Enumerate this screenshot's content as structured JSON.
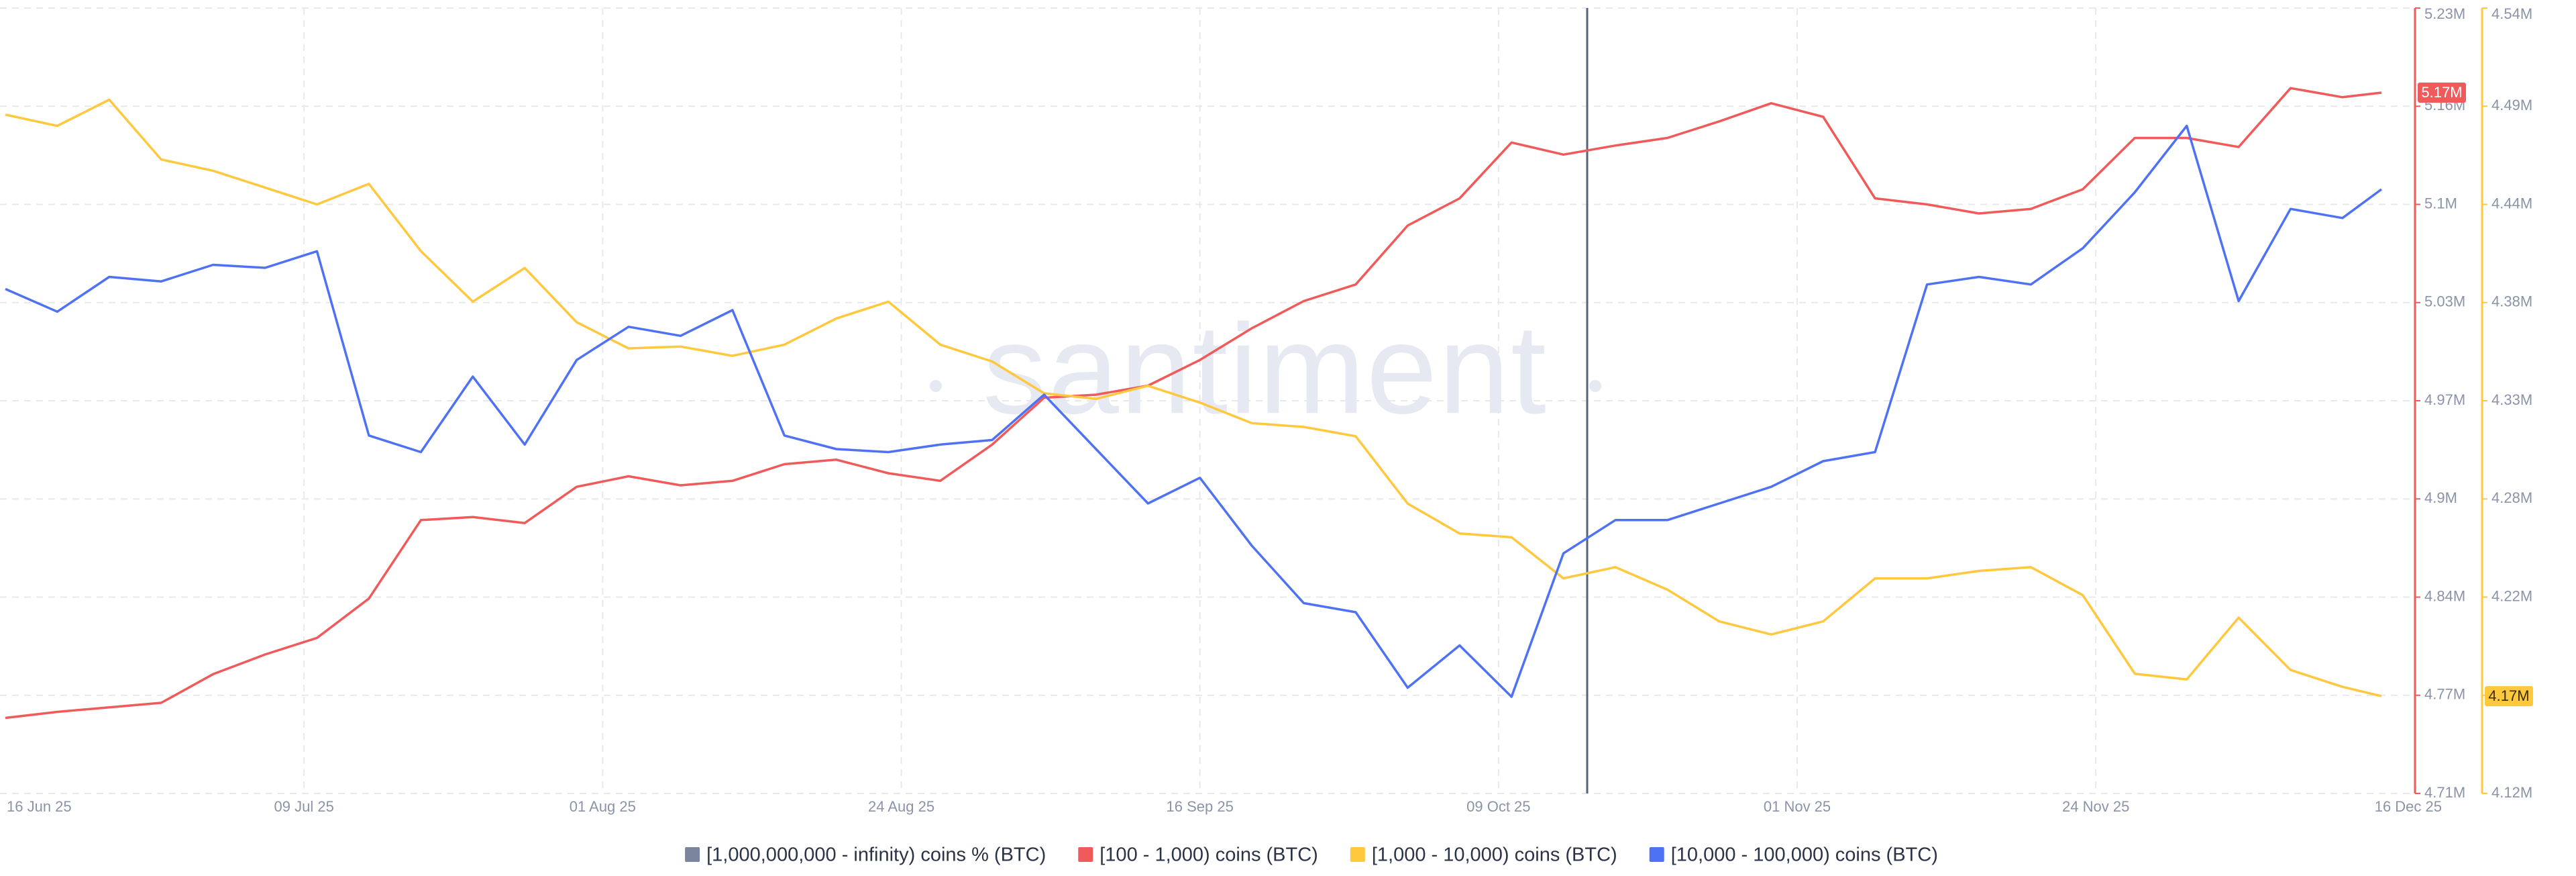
{
  "chart_data": {
    "type": "line",
    "watermark": "santiment",
    "x": [
      "2025-06-16",
      "2025-06-20",
      "2025-06-24",
      "2025-06-28",
      "2025-07-02",
      "2025-07-06",
      "2025-07-10",
      "2025-07-14",
      "2025-07-18",
      "2025-07-22",
      "2025-07-26",
      "2025-07-30",
      "2025-08-03",
      "2025-08-07",
      "2025-08-11",
      "2025-08-15",
      "2025-08-19",
      "2025-08-23",
      "2025-08-27",
      "2025-08-31",
      "2025-09-04",
      "2025-09-08",
      "2025-09-12",
      "2025-09-16",
      "2025-09-20",
      "2025-09-24",
      "2025-09-28",
      "2025-10-02",
      "2025-10-06",
      "2025-10-10",
      "2025-10-14",
      "2025-10-18",
      "2025-10-22",
      "2025-10-26",
      "2025-10-30",
      "2025-11-03",
      "2025-11-07",
      "2025-11-11",
      "2025-11-15",
      "2025-11-19",
      "2025-11-23",
      "2025-11-27",
      "2025-12-01",
      "2025-12-05",
      "2025-12-09",
      "2025-12-13",
      "2025-12-16"
    ],
    "xlim": [
      "2025-06-16",
      "2025-12-16"
    ],
    "xticks": [
      {
        "value": "2025-06-16",
        "label": "16 Jun 25"
      },
      {
        "value": "2025-07-09",
        "label": "09 Jul 25"
      },
      {
        "value": "2025-08-01",
        "label": "01 Aug 25"
      },
      {
        "value": "2025-08-24",
        "label": "24 Aug 25"
      },
      {
        "value": "2025-09-16",
        "label": "16 Sep 25"
      },
      {
        "value": "2025-10-09",
        "label": "09 Oct 25"
      },
      {
        "value": "2025-11-01",
        "label": "01 Nov 25"
      },
      {
        "value": "2025-11-24",
        "label": "24 Nov 25"
      },
      {
        "value": "2025-12-16",
        "label": "16 Dec 25"
      }
    ],
    "ylim": [
      4.71,
      5.23
    ],
    "yticks": [
      {
        "value": 4.71,
        "label": "4.71M"
      },
      {
        "value": 4.775,
        "label": "4.77M"
      },
      {
        "value": 4.84,
        "label": "4.84M"
      },
      {
        "value": 4.905,
        "label": "4.9M"
      },
      {
        "value": 4.97,
        "label": "4.97M"
      },
      {
        "value": 5.035,
        "label": "5.03M"
      },
      {
        "value": 5.1,
        "label": "5.1M"
      },
      {
        "value": 5.165,
        "label": "5.16M"
      },
      {
        "value": 5.23,
        "label": "5.23M"
      }
    ],
    "y2lim": [
      4.12,
      4.54
    ],
    "y2ticks": [
      {
        "value": 4.12,
        "label": "4.12M"
      },
      {
        "value": 4.1725,
        "label": "4.17M"
      },
      {
        "value": 4.225,
        "label": "4.22M"
      },
      {
        "value": 4.2775,
        "label": "4.28M"
      },
      {
        "value": 4.33,
        "label": "4.33M"
      },
      {
        "value": 4.3825,
        "label": "4.38M"
      },
      {
        "value": 4.435,
        "label": "4.44M"
      },
      {
        "value": 4.4875,
        "label": "4.49M"
      },
      {
        "value": 4.54,
        "label": "4.54M"
      }
    ],
    "grid": true,
    "series": [
      {
        "name": "[1,000,000,000 - infinity) coins % (BTC)",
        "color": "#7a849c"
      },
      {
        "name": "[100 - 1,000) coins (BTC)",
        "color": "#f05a5a",
        "axis": "y",
        "values": [
          4.76,
          4.764,
          4.767,
          4.77,
          4.789,
          4.802,
          4.813,
          4.839,
          4.891,
          4.893,
          4.889,
          4.913,
          4.92,
          4.914,
          4.917,
          4.928,
          4.931,
          4.922,
          4.917,
          4.941,
          4.972,
          4.974,
          4.98,
          4.997,
          5.018,
          5.036,
          5.047,
          5.086,
          5.104,
          5.141,
          5.133,
          5.139,
          5.144,
          5.155,
          5.167,
          5.158,
          5.104,
          5.1,
          5.094,
          5.097,
          5.11,
          5.144,
          5.144,
          5.138,
          5.177,
          5.171,
          5.174
        ],
        "value_labels": [
          null,
          null,
          null,
          null,
          null,
          null,
          null,
          null,
          null,
          null,
          null,
          null,
          null,
          null,
          null,
          null,
          null,
          null,
          null,
          null,
          null,
          null,
          null,
          null,
          null,
          null,
          null,
          null,
          null,
          null,
          null,
          null,
          null,
          null,
          null,
          null,
          null,
          null,
          null,
          null,
          null,
          null,
          null,
          null,
          null,
          null,
          "5.17M"
        ]
      },
      {
        "name": "[1,000 - 10,000) coins (BTC)",
        "color": "#ffc83d",
        "axis": "y2",
        "values": [
          4.483,
          4.477,
          4.491,
          4.459,
          4.453,
          4.444,
          4.435,
          4.446,
          4.41,
          4.383,
          4.401,
          4.372,
          4.358,
          4.359,
          4.354,
          4.36,
          4.374,
          4.383,
          4.36,
          4.351,
          4.334,
          4.331,
          4.338,
          4.329,
          4.318,
          4.316,
          4.311,
          4.275,
          4.259,
          4.257,
          4.235,
          4.241,
          4.229,
          4.212,
          4.205,
          4.212,
          4.235,
          4.235,
          4.239,
          4.241,
          4.226,
          4.184,
          4.181,
          4.214,
          4.186,
          4.177,
          4.172
        ],
        "value_labels": [
          null,
          null,
          null,
          null,
          null,
          null,
          null,
          null,
          null,
          null,
          null,
          null,
          null,
          null,
          null,
          null,
          null,
          null,
          null,
          null,
          null,
          null,
          null,
          null,
          null,
          null,
          null,
          null,
          null,
          null,
          null,
          null,
          null,
          null,
          null,
          null,
          null,
          null,
          null,
          null,
          null,
          null,
          null,
          null,
          null,
          null,
          "4.17M"
        ]
      },
      {
        "name": "[10,000 - 100,000) coins (BTC)",
        "color": "#4f72f5",
        "axis": "y",
        "values": [
          5.044,
          5.029,
          5.052,
          5.049,
          5.06,
          5.058,
          5.069,
          4.947,
          4.936,
          4.986,
          4.941,
          4.997,
          5.019,
          5.013,
          5.03,
          4.947,
          4.938,
          4.936,
          4.941,
          4.944,
          4.974,
          4.938,
          4.902,
          4.919,
          4.874,
          4.836,
          4.83,
          4.78,
          4.808,
          4.774,
          4.869,
          4.891,
          4.891,
          4.902,
          4.913,
          4.93,
          4.936,
          5.047,
          5.052,
          5.047,
          5.071,
          5.108,
          5.152,
          5.036,
          5.097,
          5.091,
          5.11
        ]
      }
    ]
  }
}
